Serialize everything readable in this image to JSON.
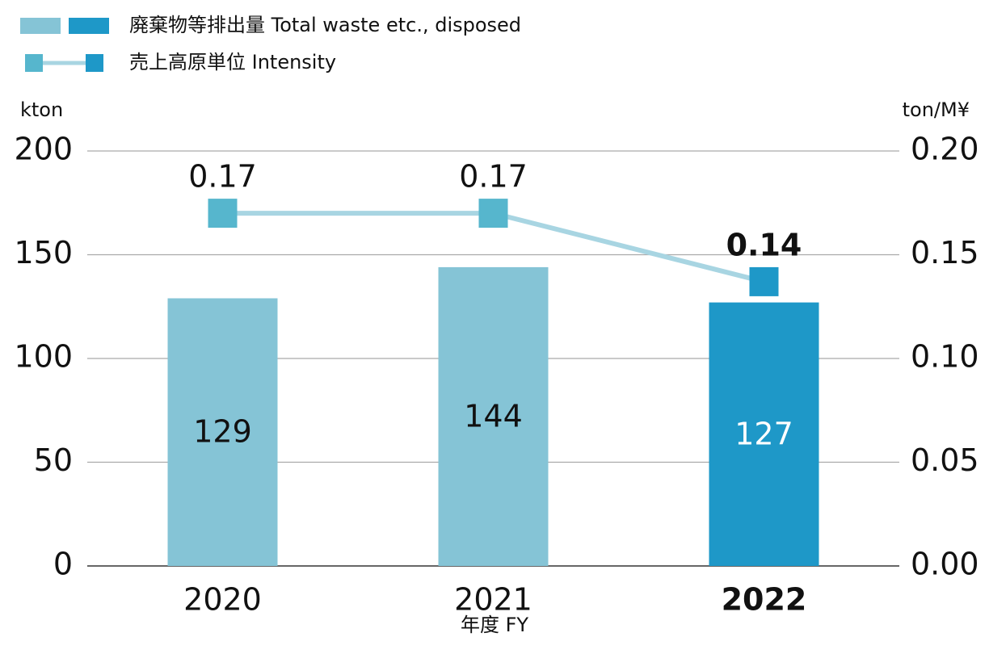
{
  "chart_data": {
    "type": "bar",
    "categories": [
      "2020",
      "2021",
      "2022"
    ],
    "emphasis": [
      false,
      false,
      true
    ],
    "x_label": "年度 FY",
    "y_label": "kton",
    "y2_label": "ton/M¥",
    "ylim": [
      0,
      200
    ],
    "yticks": [
      0,
      50,
      100,
      150,
      200
    ],
    "y2lim": [
      0,
      0.2
    ],
    "y2ticks": [
      {
        "value": 0,
        "label": "0.00"
      },
      0.05,
      {
        "value": 0.1,
        "label": "0.10"
      },
      0.15,
      {
        "value": 0.2,
        "label": "0.20"
      }
    ],
    "grid": true,
    "series": [
      {
        "name": "廃棄物等排出量  Total waste etc., disposed",
        "type": "bar",
        "colors": [
          "#85c4d6",
          "#85c4d6",
          "#1e98c8"
        ],
        "values": [
          129,
          144,
          127
        ]
      },
      {
        "name": "売上高原単位  Intensity",
        "type": "line",
        "axis": "y2",
        "color": "#a8d5e2",
        "colors": [
          "#56b6cd",
          "#56b6cd",
          "#1e98c8"
        ],
        "values": [
          0.17,
          0.17,
          0.137
        ],
        "value_labels": [
          "0.17",
          "0.17",
          "0.14"
        ]
      }
    ]
  }
}
